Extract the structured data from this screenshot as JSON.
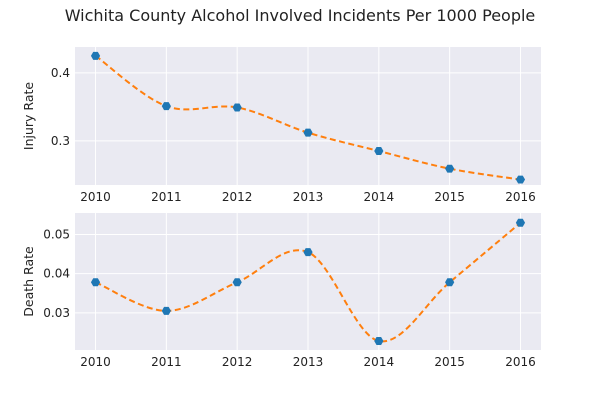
{
  "figure": {
    "title": "Wichita County Alcohol Involved Incidents Per 1000 People"
  },
  "style": {
    "panel_bg": "#eaeaf2",
    "grid_color": "#ffffff",
    "line_color": "#ff7f0e",
    "marker_color": "#1f77b4"
  },
  "chart_data": [
    {
      "type": "line",
      "title": "Wichita County Alcohol Involved Incidents Per 1000 People",
      "xlabel": "",
      "ylabel": "Injury Rate",
      "x": [
        2010,
        2011,
        2012,
        2013,
        2014,
        2015,
        2016
      ],
      "series": [
        {
          "values": [
            0.425,
            0.351,
            0.349,
            0.312,
            0.285,
            0.259,
            0.243
          ]
        }
      ],
      "ylim": [
        0.235,
        0.438
      ],
      "yticks": [
        "0.3",
        "0.4"
      ],
      "xticks": [
        "2010",
        "2011",
        "2012",
        "2013",
        "2014",
        "2015",
        "2016"
      ],
      "line_style": "dashed smooth curve",
      "markers": "hexagon",
      "grid": true
    },
    {
      "type": "line",
      "xlabel": "",
      "ylabel": "Death Rate",
      "x": [
        2010,
        2011,
        2012,
        2013,
        2014,
        2015,
        2016
      ],
      "series": [
        {
          "values": [
            0.0378,
            0.0305,
            0.0378,
            0.0455,
            0.0228,
            0.0378,
            0.053
          ]
        }
      ],
      "ylim": [
        0.0205,
        0.0555
      ],
      "yticks": [
        "0.03",
        "0.04",
        "0.05"
      ],
      "xticks": [
        "2010",
        "2011",
        "2012",
        "2013",
        "2014",
        "2015",
        "2016"
      ],
      "line_style": "dashed smooth curve",
      "markers": "hexagon",
      "grid": true
    }
  ]
}
